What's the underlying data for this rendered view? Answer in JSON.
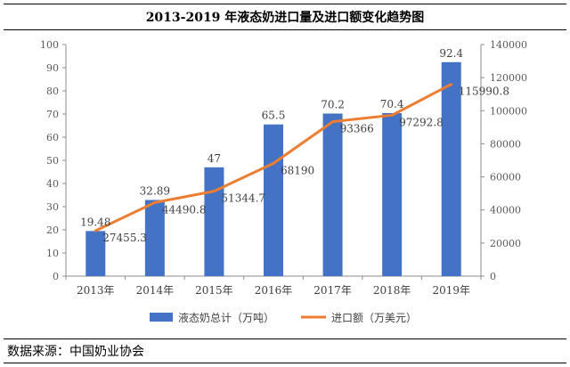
{
  "title": "2013-2019 年液态奶进口量及进口额变化趋势图",
  "source": "数据来源：中国奶业协会",
  "chart_data": {
    "type": "bar",
    "categories": [
      "2013年",
      "2014年",
      "2015年",
      "2016年",
      "2017年",
      "2018年",
      "2019年"
    ],
    "series": [
      {
        "name": "液态奶总计（万吨）",
        "type": "bar",
        "axis": "left",
        "color": "#4472C4",
        "values": [
          19.48,
          32.89,
          47,
          65.5,
          70.2,
          70.4,
          92.4
        ],
        "labels": [
          "19.48",
          "32.89",
          "47",
          "65.5",
          "70.2",
          "70.4",
          "92.4"
        ]
      },
      {
        "name": "进口额（万美元）",
        "type": "line",
        "axis": "right",
        "color": "#ED7D31",
        "values": [
          27455.3,
          44490.8,
          51344.7,
          68190,
          93366,
          97292.8,
          115990.8
        ],
        "labels": [
          "27455.3",
          "44490.8",
          "51344.7",
          "68190",
          "93366",
          "97292.8",
          "115990.8"
        ]
      }
    ],
    "y_left": {
      "min": 0,
      "max": 100,
      "step": 10
    },
    "y_right": {
      "min": 0,
      "max": 140000,
      "step": 20000
    },
    "legend_position": "bottom"
  }
}
